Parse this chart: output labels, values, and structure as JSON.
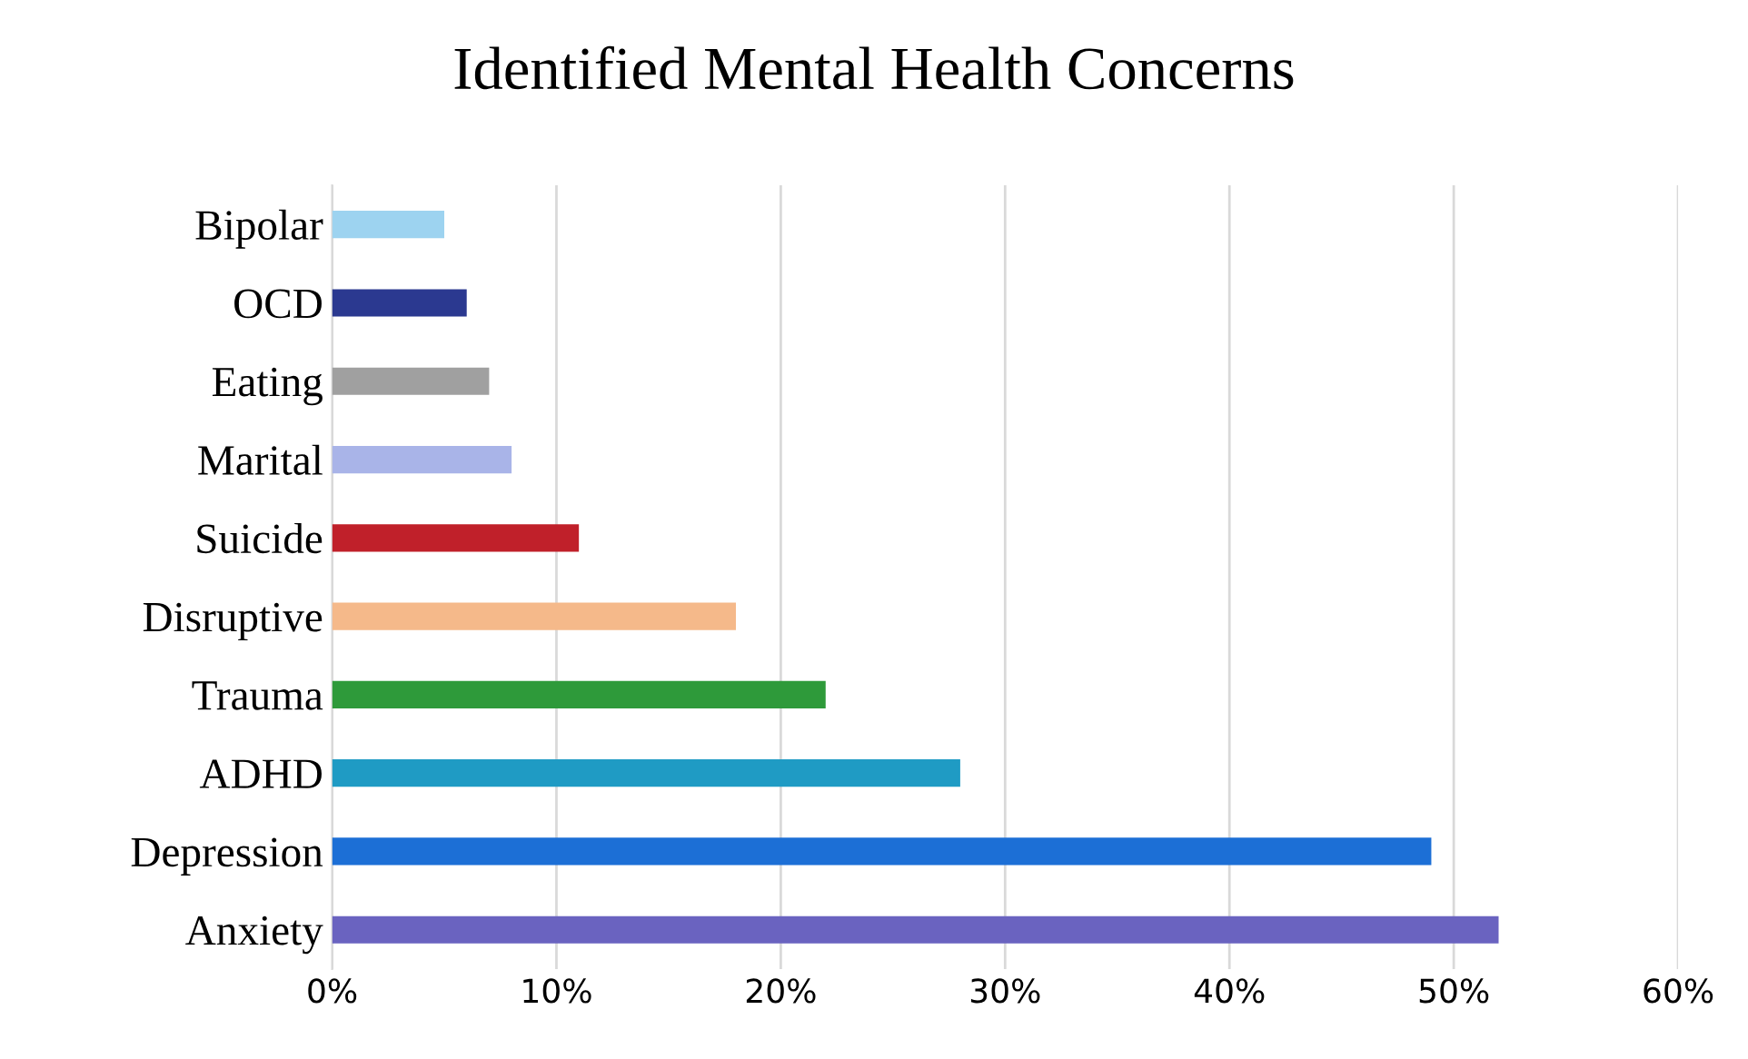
{
  "chart_data": {
    "type": "bar",
    "title": "Identified Mental Health Concerns",
    "orientation": "horizontal",
    "categories": [
      "Bipolar",
      "OCD",
      "Eating",
      "Marital",
      "Suicide",
      "Disruptive",
      "Trauma",
      "ADHD",
      "Depression",
      "Anxiety"
    ],
    "values": [
      5,
      6,
      7,
      8,
      11,
      18,
      22,
      28,
      49,
      52
    ],
    "colors": [
      "#9dd3f0",
      "#2b3990",
      "#a0a0a0",
      "#a9b4e8",
      "#c0202a",
      "#f5b98a",
      "#2e9a3a",
      "#1f9bc4",
      "#1c6fd6",
      "#6a63c0"
    ],
    "xlim": [
      0,
      60
    ],
    "xticks": [
      {
        "value": 0,
        "label": "0%"
      },
      {
        "value": 10,
        "label": "10%"
      },
      {
        "value": 20,
        "label": "20%"
      },
      {
        "value": 30,
        "label": "30%"
      },
      {
        "value": 40,
        "label": "40%"
      },
      {
        "value": 50,
        "label": "50%"
      },
      {
        "value": 60,
        "label": "60%"
      }
    ],
    "grid": "x"
  }
}
